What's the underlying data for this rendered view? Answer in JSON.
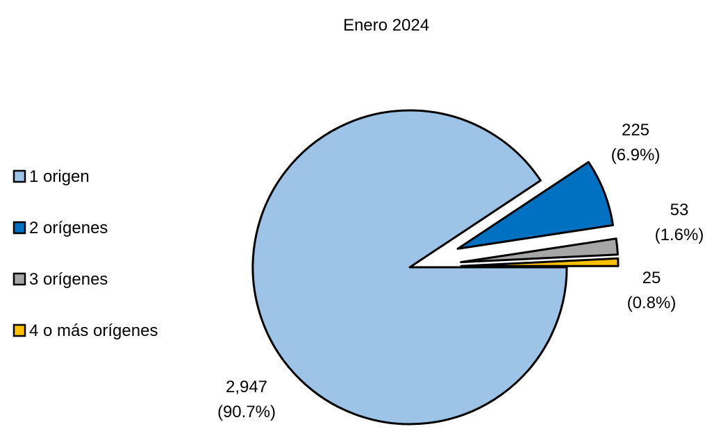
{
  "chart_data": {
    "type": "pie",
    "title": "Enero 2024",
    "slices": [
      {
        "label": "1 origen",
        "value": 2947,
        "percent_label": "(90.7%)",
        "value_label": "2,947",
        "color": "#9DC3E6"
      },
      {
        "label": "2 orígenes",
        "value": 225,
        "percent_label": "(6.9%)",
        "value_label": "225",
        "color": "#0070C0"
      },
      {
        "label": "3 orígenes",
        "value": 53,
        "percent_label": "(1.6%)",
        "value_label": "53",
        "color": "#A6A6A6"
      },
      {
        "label": "4 o más orígenes",
        "value": 25,
        "percent_label": "(0.8%)",
        "value_label": "25",
        "color": "#FFC000"
      }
    ],
    "exploded_slices": [
      "2 orígenes",
      "3 orígenes",
      "4 o más orígenes"
    ],
    "legend_position": "left",
    "outline_color": "#000000"
  }
}
